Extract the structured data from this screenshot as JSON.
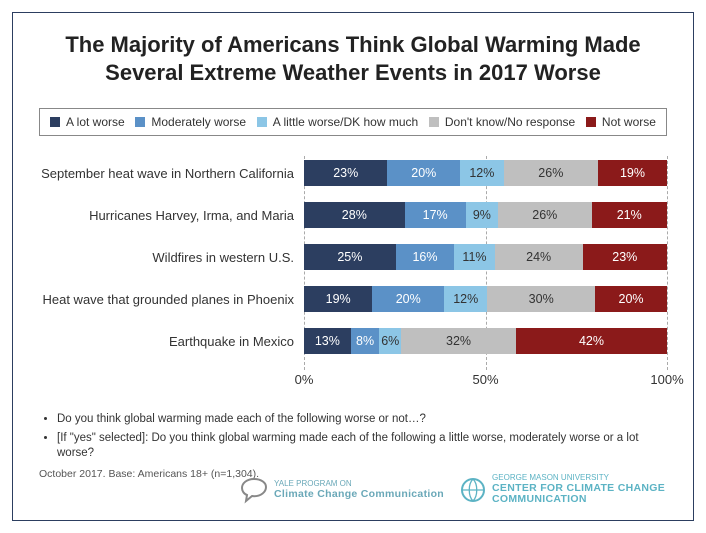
{
  "title": "The Majority of Americans Think Global Warming Made Several Extreme Weather Events in 2017 Worse",
  "legend": [
    {
      "label": "A lot worse",
      "color": "#2c3e60"
    },
    {
      "label": "Moderately worse",
      "color": "#5b91c7"
    },
    {
      "label": "A little worse/DK how much",
      "color": "#8cc6e6"
    },
    {
      "label": "Don't know/No response",
      "color": "#bfbfbf"
    },
    {
      "label": "Not worse",
      "color": "#8b1a1a"
    }
  ],
  "chart": {
    "type": "stacked-bar-horizontal",
    "xlim": [
      0,
      100
    ],
    "xticks": [
      0,
      50,
      100
    ],
    "xtick_labels": [
      "0%",
      "50%",
      "100%"
    ],
    "categories": [
      "September heat wave in Northern California",
      "Hurricanes Harvey, Irma, and Maria",
      "Wildfires in western U.S.",
      "Heat wave that grounded planes in Phoenix",
      "Earthquake in Mexico"
    ],
    "series_colors": [
      "#2c3e60",
      "#5b91c7",
      "#8cc6e6",
      "#bfbfbf",
      "#8b1a1a"
    ],
    "light_text_idx": [
      2,
      3
    ],
    "data": [
      [
        23,
        20,
        12,
        26,
        19
      ],
      [
        28,
        17,
        9,
        26,
        21
      ],
      [
        25,
        16,
        11,
        24,
        23
      ],
      [
        19,
        20,
        12,
        30,
        20
      ],
      [
        13,
        8,
        6,
        32,
        42
      ]
    ],
    "label_fontsize": 13,
    "value_fontsize": 12.5,
    "background_color": "#ffffff",
    "grid_color": "#aaaaaa"
  },
  "notes": [
    "Do you think global warming made each of the following worse or not…?",
    "[If \"yes\" selected]:  Do you think global warming made each of the following a little worse, moderately worse or a lot worse?"
  ],
  "footer": "October 2017. Base: Americans 18+ (n=1,304).",
  "logos": {
    "yale": {
      "top": "YALE PROGRAM ON",
      "main": "Climate Change Communication",
      "color": "#6aa8b8"
    },
    "gmu": {
      "top": "GEORGE MASON UNIVERSITY",
      "main": "CENTER FOR CLIMATE CHANGE",
      "sub": "COMMUNICATION",
      "color": "#5cb3c4"
    }
  }
}
